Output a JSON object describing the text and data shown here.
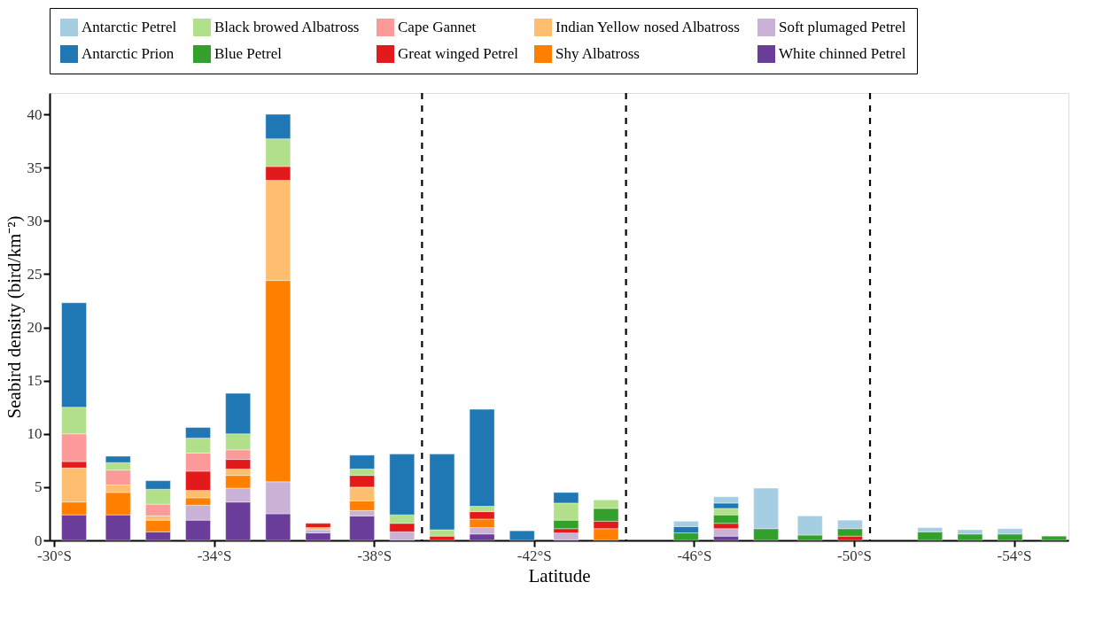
{
  "chart_data": {
    "type": "bar",
    "stacked": true,
    "xlabel": "Latitude",
    "ylabel": "Seabird density (bird/km⁻²)",
    "x": [
      -30.5,
      -31.6,
      -32.6,
      -33.6,
      -34.6,
      -35.6,
      -36.6,
      -37.7,
      -38.7,
      -39.7,
      -40.7,
      -41.7,
      -42.8,
      -43.8,
      -44.8,
      -45.8,
      -46.8,
      -47.8,
      -48.9,
      -49.9,
      -50.9,
      -51.9,
      -52.9,
      -53.9,
      -55.0
    ],
    "series": [
      {
        "name": "White chinned Petrel",
        "color": "#6a3d9a",
        "values": [
          2.4,
          2.4,
          0.8,
          1.9,
          3.6,
          2.5,
          0.7,
          2.3,
          null,
          null,
          0.6,
          null,
          null,
          null,
          null,
          null,
          0.4,
          null,
          null,
          null,
          null,
          null,
          null,
          null,
          null
        ]
      },
      {
        "name": "Soft plumaged Petrel",
        "color": "#cab2d6",
        "values": [
          null,
          null,
          null,
          1.4,
          1.3,
          3.0,
          0.3,
          0.5,
          0.8,
          null,
          0.6,
          null,
          0.7,
          null,
          null,
          null,
          0.7,
          null,
          null,
          null,
          null,
          null,
          null,
          null,
          null
        ]
      },
      {
        "name": "Shy Albatross",
        "color": "#ff7f00",
        "values": [
          1.2,
          2.1,
          1.1,
          0.7,
          1.2,
          18.9,
          null,
          0.9,
          null,
          null,
          0.8,
          null,
          null,
          1.1,
          null,
          null,
          null,
          null,
          null,
          null,
          null,
          null,
          null,
          null,
          null
        ]
      },
      {
        "name": "Indian Yellow nosed Albatross",
        "color": "#fdbf6f",
        "values": [
          3.2,
          0.7,
          0.4,
          0.7,
          0.6,
          9.4,
          0.2,
          1.3,
          null,
          null,
          null,
          null,
          null,
          null,
          null,
          null,
          null,
          null,
          null,
          null,
          null,
          null,
          null,
          null,
          null
        ]
      },
      {
        "name": "Great winged Petrel",
        "color": "#e31a1c",
        "values": [
          0.6,
          null,
          null,
          1.8,
          0.9,
          1.3,
          0.4,
          1.1,
          0.8,
          0.4,
          0.7,
          null,
          0.4,
          0.7,
          null,
          null,
          0.5,
          null,
          null,
          0.4,
          null,
          null,
          null,
          null,
          null
        ]
      },
      {
        "name": "Cape Gannet",
        "color": "#fb9a99",
        "values": [
          2.6,
          1.4,
          1.1,
          1.7,
          0.9,
          null,
          null,
          null,
          null,
          null,
          null,
          null,
          null,
          null,
          null,
          null,
          null,
          null,
          null,
          null,
          null,
          null,
          null,
          null,
          null
        ]
      },
      {
        "name": "Blue Petrel",
        "color": "#33a02c",
        "values": [
          null,
          null,
          null,
          null,
          null,
          null,
          null,
          null,
          null,
          null,
          null,
          null,
          0.8,
          1.2,
          null,
          0.7,
          0.8,
          1.1,
          0.5,
          0.7,
          null,
          0.8,
          0.6,
          0.6,
          0.4
        ]
      },
      {
        "name": "Black browed Albatross",
        "color": "#b2df8a",
        "values": [
          2.5,
          0.7,
          1.4,
          1.4,
          1.5,
          2.6,
          null,
          0.6,
          0.8,
          0.6,
          0.5,
          null,
          1.6,
          0.8,
          null,
          null,
          0.6,
          null,
          null,
          null,
          null,
          null,
          null,
          null,
          null
        ]
      },
      {
        "name": "Antarctic Prion",
        "color": "#1f78b4",
        "values": [
          9.8,
          0.6,
          0.8,
          1.0,
          3.8,
          2.3,
          null,
          1.3,
          5.7,
          7.1,
          9.1,
          0.9,
          1.0,
          null,
          null,
          0.6,
          0.5,
          null,
          null,
          null,
          null,
          null,
          null,
          null,
          null
        ]
      },
      {
        "name": "Antarctic Petrel",
        "color": "#a6cee3",
        "values": [
          null,
          null,
          null,
          null,
          null,
          null,
          null,
          null,
          null,
          null,
          null,
          null,
          null,
          null,
          null,
          0.5,
          0.6,
          3.8,
          1.8,
          0.8,
          null,
          0.4,
          0.4,
          0.5,
          null
        ]
      }
    ],
    "xlim": [
      -30,
      -55.25
    ],
    "xticks": [
      {
        "value": -30,
        "label": "-30°S"
      },
      {
        "value": -34,
        "label": "-34°S"
      },
      {
        "value": -38,
        "label": "-38°S"
      },
      {
        "value": -42,
        "label": "-42°S"
      },
      {
        "value": -46,
        "label": "-46°S"
      },
      {
        "value": -50,
        "label": "-50°S"
      },
      {
        "value": -54,
        "label": "-54°S"
      }
    ],
    "ylim": [
      0,
      42
    ],
    "yticks": [
      0,
      5,
      10,
      15,
      20,
      25,
      30,
      35,
      40
    ],
    "ref_lines": [
      {
        "axis": "x",
        "value": -39.2,
        "color": "#000000",
        "line_style": "dashed"
      },
      {
        "axis": "x",
        "value": -44.3,
        "color": "#000000",
        "line_style": "dashed"
      },
      {
        "axis": "x",
        "value": -50.4,
        "color": "#000000",
        "line_style": "dashed"
      }
    ],
    "legend": "top",
    "grid": false
  }
}
